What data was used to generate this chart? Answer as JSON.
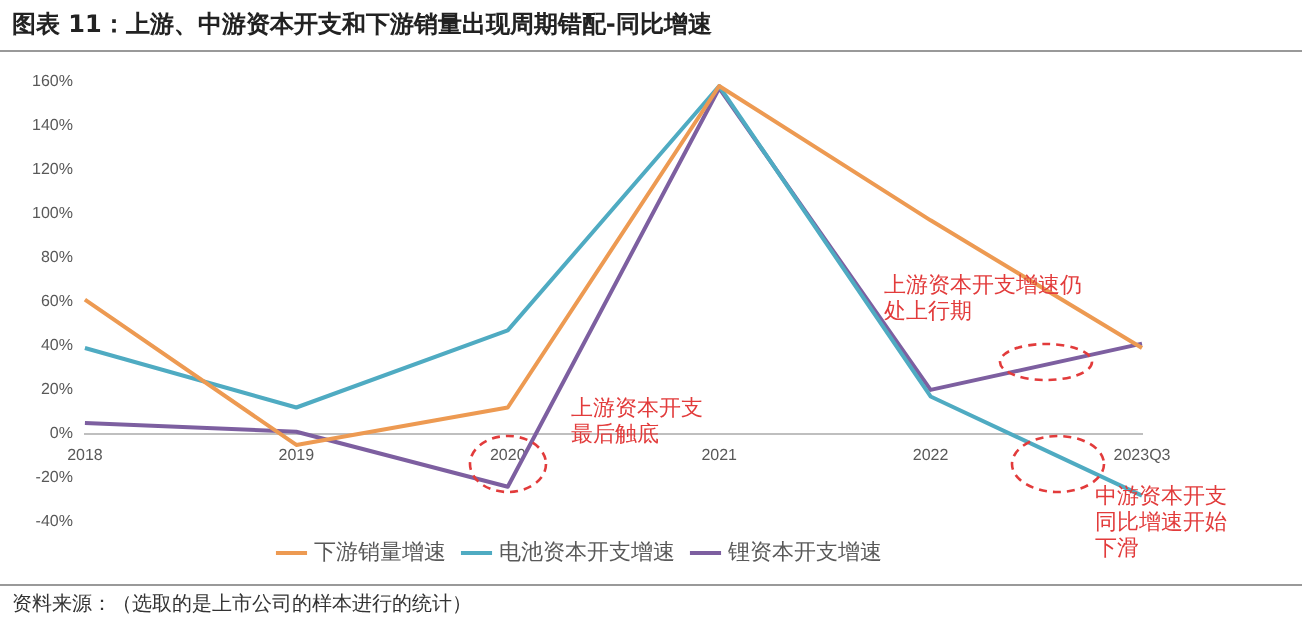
{
  "chart_data": {
    "type": "line",
    "title": "图表 11：上游、中游资本开支和下游销量出现周期错配-同比增速",
    "categories": [
      "2018",
      "2019",
      "2020",
      "2021",
      "2022",
      "2023Q3"
    ],
    "series": [
      {
        "name": "下游销量增速",
        "color": "#ed9a52",
        "values": [
          61,
          -5,
          12,
          158,
          97,
          39
        ]
      },
      {
        "name": "电池资本开支增速",
        "color": "#4fabc2",
        "values": [
          39,
          12,
          47,
          158,
          17,
          -28
        ]
      },
      {
        "name": "锂资本开支增速",
        "color": "#7d5fa0",
        "values": [
          5,
          1,
          -24,
          157,
          20,
          41
        ]
      }
    ],
    "ylim": [
      -40,
      160
    ],
    "yticks": [
      {
        "value": -40,
        "label": "-40%"
      },
      {
        "value": -20,
        "label": "-20%"
      },
      {
        "value": 0,
        "label": "0%"
      },
      {
        "value": 20,
        "label": "20%"
      },
      {
        "value": 40,
        "label": "40%"
      },
      {
        "value": 60,
        "label": "60%"
      },
      {
        "value": 80,
        "label": "80%"
      },
      {
        "value": 100,
        "label": "100%"
      },
      {
        "value": 120,
        "label": "120%"
      },
      {
        "value": 140,
        "label": "140%"
      },
      {
        "value": 160,
        "label": "160%"
      }
    ],
    "grid": false,
    "legend": "bottom",
    "marker": "none",
    "line_style": "solid",
    "annotations": [
      "上游资本开支最后触底",
      "上游资本开支增速仍处上行期",
      "中游资本开支同比增速开始下滑",
      "资料来源：（选取的是上市公司的样本进行的统计）"
    ]
  }
}
